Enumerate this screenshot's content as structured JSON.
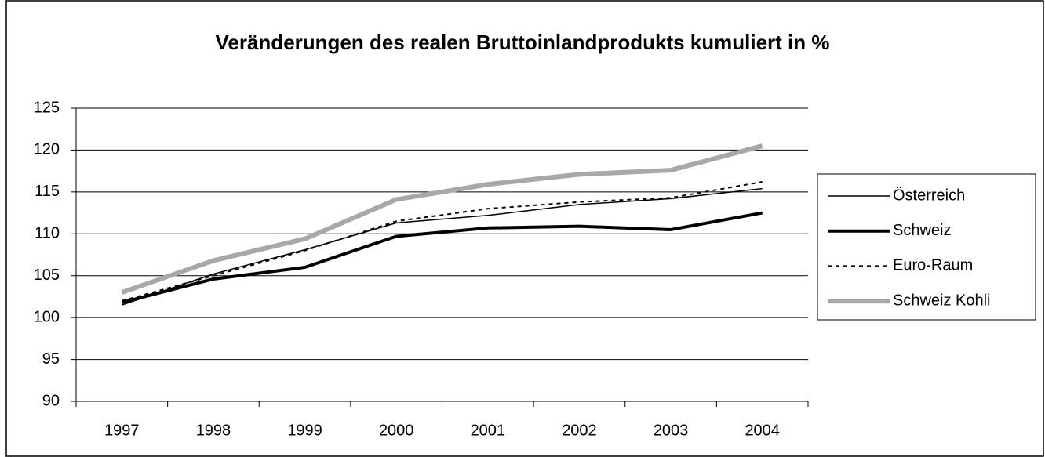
{
  "chart_data": {
    "type": "line",
    "title": "Veränderungen des realen Bruttoinlandprodukts kumuliert in %",
    "categories": [
      "1997",
      "1998",
      "1999",
      "2000",
      "2001",
      "2002",
      "2003",
      "2004"
    ],
    "series": [
      {
        "name": "Österreich",
        "color": "#000000",
        "values": [
          101.5,
          105.2,
          108.1,
          111.3,
          112.2,
          113.5,
          114.2,
          115.4
        ]
      },
      {
        "name": "Schweiz",
        "color": "#000000",
        "values": [
          101.8,
          104.6,
          106.0,
          109.7,
          110.7,
          110.9,
          110.5,
          112.5
        ]
      },
      {
        "name": "Euro-Raum",
        "color": "#000000",
        "values": [
          102.0,
          105.0,
          108.0,
          111.5,
          113.0,
          113.8,
          114.3,
          116.2
        ]
      },
      {
        "name": "Schweiz Kohli",
        "color": "#a8a8a8",
        "values": [
          103.0,
          106.8,
          109.4,
          114.1,
          115.9,
          117.1,
          117.6,
          120.5
        ]
      }
    ],
    "ylim": [
      90,
      125
    ],
    "yticks": [
      90,
      95,
      100,
      105,
      110,
      115,
      120,
      125
    ],
    "grid": true,
    "legend": "right"
  }
}
